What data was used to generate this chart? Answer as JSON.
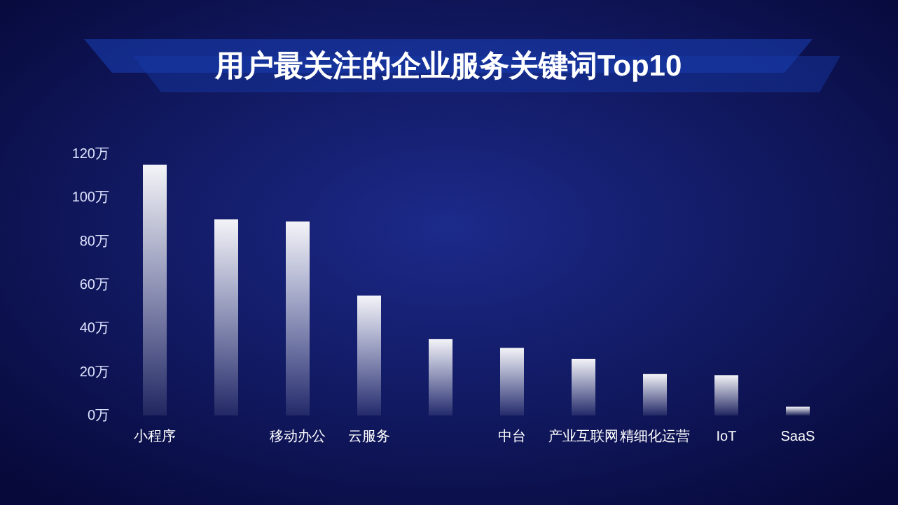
{
  "chart_data": {
    "type": "bar",
    "title": "用户最关注的企业服务关键词Top10",
    "categories": [
      "小程序",
      null,
      "移动办公",
      "云服务",
      null,
      "中台",
      "产业互联网",
      "精细化运营",
      "IoT",
      "SaaS"
    ],
    "values": [
      115,
      90,
      89,
      55,
      35,
      31,
      26,
      19,
      18.5,
      4
    ],
    "color": "#ffffff",
    "ylim": [
      0,
      120
    ],
    "yticks": [
      {
        "value": 0,
        "label": "0万"
      },
      {
        "value": 20,
        "label": "20万"
      },
      {
        "value": 40,
        "label": "40万"
      },
      {
        "value": 60,
        "label": "60万"
      },
      {
        "value": 80,
        "label": "80万"
      },
      {
        "value": 100,
        "label": "100万"
      },
      {
        "value": 120,
        "label": "120万"
      }
    ]
  }
}
